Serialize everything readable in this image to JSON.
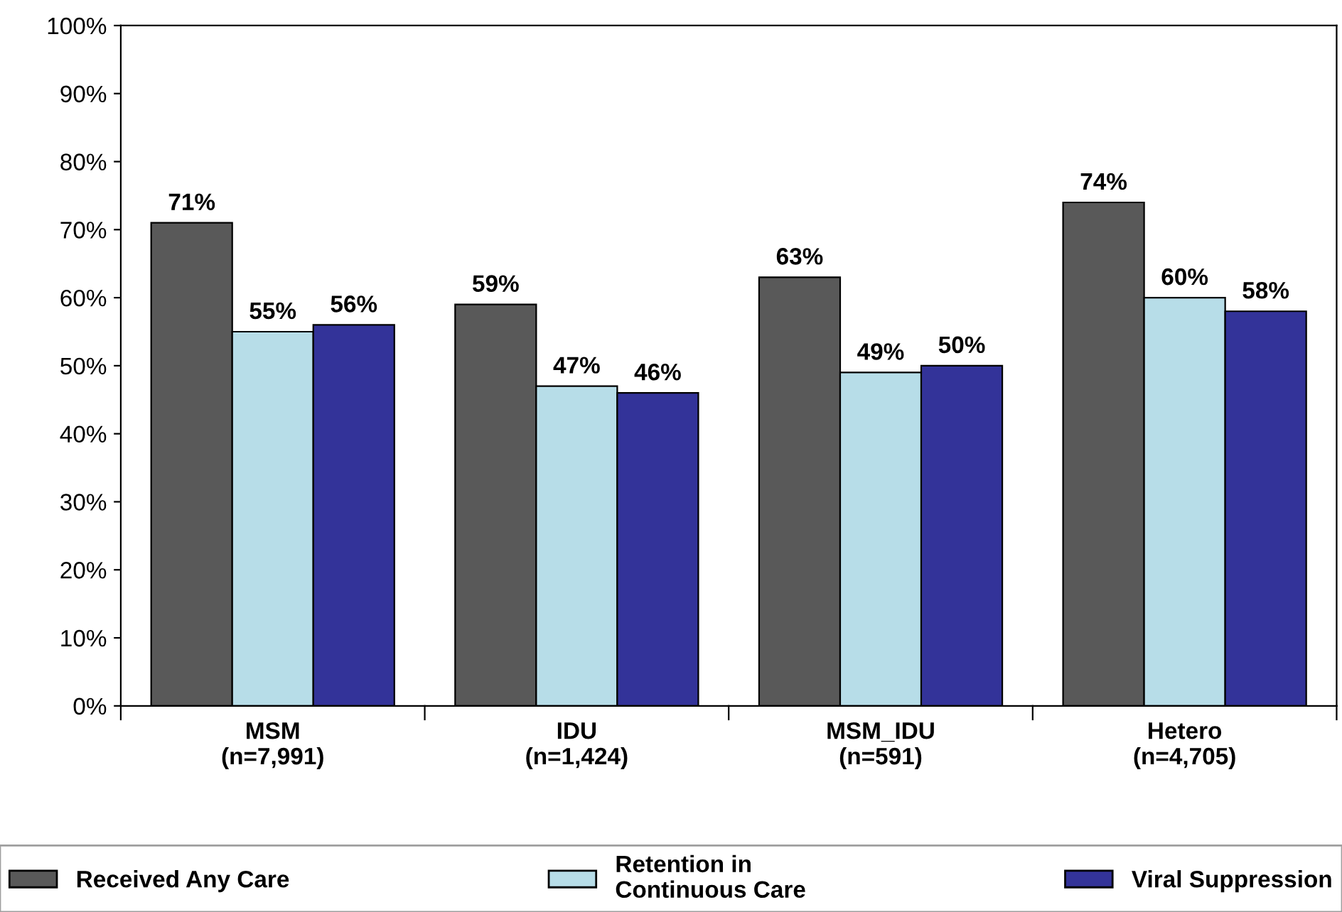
{
  "chart_data": {
    "type": "bar",
    "categories": [
      "MSM\n(n=7,991)",
      "IDU\n(n=1,424)",
      "MSM_IDU\n(n=591)",
      "Hetero\n(n=4,705)"
    ],
    "series": [
      {
        "name": "Received Any Care",
        "color": "#595959",
        "values": [
          71,
          59,
          63,
          74
        ],
        "value_labels": [
          "71%",
          "59%",
          "63%",
          "74%"
        ]
      },
      {
        "name": "Retention in\nContinuous Care",
        "color": "#b7dde8",
        "values": [
          55,
          47,
          49,
          60
        ],
        "value_labels": [
          "55%",
          "47%",
          "49%",
          "60%"
        ]
      },
      {
        "name": "Viral Suppression",
        "color": "#333399",
        "values": [
          56,
          46,
          50,
          58
        ],
        "value_labels": [
          "56%",
          "46%",
          "50%",
          "58%"
        ]
      }
    ],
    "ylim": [
      0,
      100
    ],
    "yticks": [
      {
        "value": 0,
        "label": "0%"
      },
      {
        "value": 10,
        "label": "10%"
      },
      {
        "value": 20,
        "label": "20%"
      },
      {
        "value": 30,
        "label": "30%"
      },
      {
        "value": 40,
        "label": "40%"
      },
      {
        "value": 50,
        "label": "50%"
      },
      {
        "value": 60,
        "label": "60%"
      },
      {
        "value": 70,
        "label": "70%"
      },
      {
        "value": 80,
        "label": "80%"
      },
      {
        "value": 90,
        "label": "90%"
      },
      {
        "value": 100,
        "label": "100%"
      }
    ],
    "grid": false,
    "legend": "bottom"
  }
}
